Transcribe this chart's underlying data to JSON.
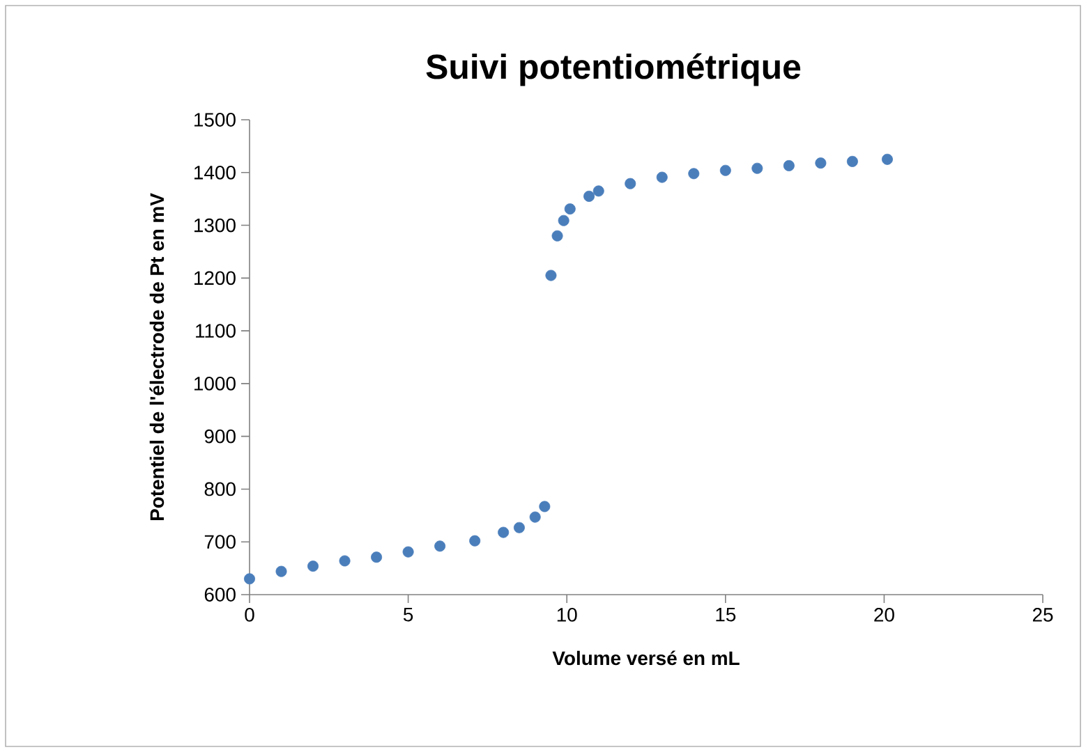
{
  "chart_data": {
    "type": "scatter",
    "title": "Suivi potentiométrique",
    "xlabel": "Volume versé en mL",
    "ylabel": "Potentiel de l'électrode de Pt en mV",
    "x": [
      0,
      1,
      2,
      3,
      4,
      5,
      6,
      7.1,
      8,
      8.5,
      9,
      9.3,
      9.5,
      9.7,
      9.9,
      10.1,
      10.7,
      11,
      12,
      13,
      14,
      15,
      16,
      17,
      18,
      19,
      20.1
    ],
    "values": [
      630,
      644,
      654,
      664,
      671,
      681,
      692,
      702,
      718,
      727,
      747,
      767,
      1205,
      1280,
      1309,
      1331,
      1355,
      1365,
      1379,
      1391,
      1398,
      1404,
      1408,
      1413,
      1418,
      1421,
      1425
    ],
    "color": "#4a7ebb",
    "marker": "circle",
    "grid": false,
    "xlim": [
      0,
      25
    ],
    "xticks": [
      0,
      5,
      10,
      15,
      20,
      25
    ],
    "ylim": [
      600,
      1500
    ],
    "yticks": [
      600,
      700,
      800,
      900,
      1000,
      1100,
      1200,
      1300,
      1400,
      1500
    ]
  }
}
